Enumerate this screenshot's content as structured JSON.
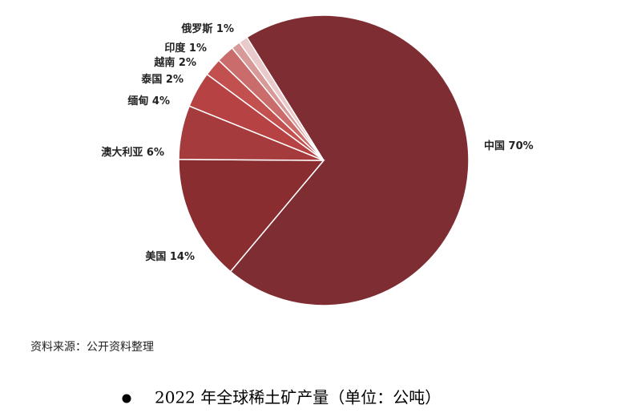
{
  "chart_data": {
    "type": "pie",
    "categories": [
      "中国",
      "美国",
      "澳大利亚",
      "缅甸",
      "泰国",
      "越南",
      "印度",
      "俄罗斯"
    ],
    "values": [
      70,
      14,
      6,
      4,
      2,
      2,
      1,
      1
    ],
    "value_labels": [
      "70%",
      "14%",
      "6%",
      "4%",
      "2%",
      "2%",
      "1%",
      "1%"
    ],
    "colors": [
      "#7e2e32",
      "#8a2d31",
      "#a53b3c",
      "#b64243",
      "#c1504f",
      "#cb6c6c",
      "#d89999",
      "#e9c9c9"
    ],
    "source": "资料来源：公开资料整理",
    "title": "2022 年全球稀土矿产量（单位：公吨）"
  }
}
